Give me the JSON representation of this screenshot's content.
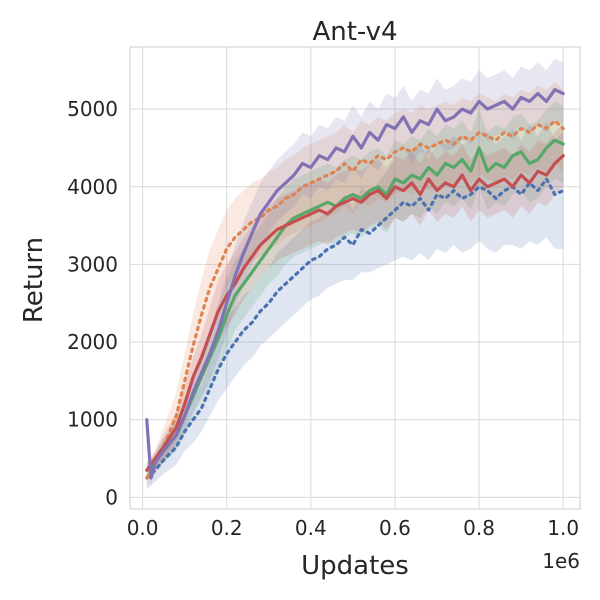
{
  "chart_data": {
    "type": "line",
    "title": "Ant-v4",
    "xlabel": "Updates",
    "ylabel": "Return",
    "x_offset_label": "1e6",
    "xlim": [
      -0.03,
      1.04
    ],
    "ylim": [
      -150,
      5800
    ],
    "x_ticks": [
      0.0,
      0.2,
      0.4,
      0.6,
      0.8,
      1.0
    ],
    "x_tick_labels": [
      "0.0",
      "0.2",
      "0.4",
      "0.6",
      "0.8",
      "1.0"
    ],
    "y_ticks": [
      0,
      1000,
      2000,
      3000,
      4000,
      5000
    ],
    "y_tick_labels": [
      "0",
      "1000",
      "2000",
      "3000",
      "4000",
      "5000"
    ],
    "grid": true,
    "series": [
      {
        "color": "#4c72b0",
        "style": "dotted",
        "x": [
          0.01,
          0.03,
          0.05,
          0.08,
          0.1,
          0.12,
          0.14,
          0.16,
          0.18,
          0.2,
          0.22,
          0.24,
          0.26,
          0.28,
          0.3,
          0.32,
          0.34,
          0.36,
          0.38,
          0.4,
          0.42,
          0.44,
          0.46,
          0.48,
          0.5,
          0.52,
          0.54,
          0.56,
          0.58,
          0.6,
          0.62,
          0.64,
          0.66,
          0.68,
          0.7,
          0.72,
          0.74,
          0.76,
          0.78,
          0.8,
          0.82,
          0.84,
          0.86,
          0.88,
          0.9,
          0.92,
          0.94,
          0.96,
          0.98,
          1.0
        ],
        "y": [
          250,
          350,
          480,
          650,
          850,
          1000,
          1150,
          1400,
          1650,
          1850,
          2000,
          2150,
          2250,
          2400,
          2500,
          2650,
          2750,
          2850,
          2950,
          3050,
          3100,
          3200,
          3250,
          3350,
          3250,
          3450,
          3400,
          3500,
          3600,
          3700,
          3800,
          3750,
          3850,
          3700,
          3900,
          3850,
          3950,
          3850,
          3900,
          4000,
          3950,
          3850,
          3950,
          4000,
          3900,
          4050,
          3950,
          4100,
          3900,
          3950
        ],
        "band_lo": [
          100,
          200,
          300,
          420,
          600,
          700,
          850,
          1050,
          1250,
          1400,
          1550,
          1700,
          1800,
          1950,
          2050,
          2150,
          2250,
          2350,
          2450,
          2550,
          2600,
          2700,
          2750,
          2800,
          2800,
          2900,
          2900,
          2950,
          3000,
          3050,
          3100,
          3050,
          3150,
          3050,
          3200,
          3150,
          3250,
          3150,
          3200,
          3300,
          3200,
          3150,
          3250,
          3250,
          3200,
          3300,
          3250,
          3350,
          3200,
          3200
        ],
        "band_hi": [
          400,
          500,
          650,
          880,
          1100,
          1300,
          1450,
          1750,
          2050,
          2300,
          2450,
          2600,
          2700,
          2850,
          2950,
          3150,
          3250,
          3350,
          3450,
          3550,
          3600,
          3700,
          3750,
          3900,
          3700,
          4000,
          3900,
          4050,
          4200,
          4350,
          4500,
          4450,
          4550,
          4350,
          4600,
          4550,
          4650,
          4550,
          4600,
          4700,
          4700,
          4550,
          4650,
          4750,
          4600,
          4800,
          4650,
          4850,
          4600,
          4700
        ]
      },
      {
        "color": "#dd8452",
        "style": "dotted",
        "x": [
          0.01,
          0.03,
          0.05,
          0.08,
          0.1,
          0.12,
          0.14,
          0.16,
          0.18,
          0.2,
          0.22,
          0.24,
          0.26,
          0.28,
          0.3,
          0.32,
          0.34,
          0.36,
          0.38,
          0.4,
          0.42,
          0.44,
          0.46,
          0.48,
          0.5,
          0.52,
          0.54,
          0.56,
          0.58,
          0.6,
          0.62,
          0.64,
          0.66,
          0.68,
          0.7,
          0.72,
          0.74,
          0.76,
          0.78,
          0.8,
          0.82,
          0.84,
          0.86,
          0.88,
          0.9,
          0.92,
          0.94,
          0.96,
          0.98,
          1.0
        ],
        "y": [
          250,
          450,
          650,
          1050,
          1500,
          1950,
          2350,
          2700,
          2950,
          3200,
          3350,
          3450,
          3550,
          3600,
          3700,
          3750,
          3850,
          3900,
          4000,
          4050,
          4100,
          4150,
          4200,
          4300,
          4200,
          4350,
          4300,
          4400,
          4350,
          4450,
          4500,
          4450,
          4550,
          4500,
          4550,
          4600,
          4550,
          4650,
          4600,
          4700,
          4650,
          4600,
          4700,
          4650,
          4750,
          4700,
          4800,
          4750,
          4850,
          4750
        ],
        "band_lo": [
          150,
          300,
          450,
          800,
          1150,
          1550,
          1900,
          2200,
          2450,
          2700,
          2850,
          2950,
          3050,
          3100,
          3200,
          3250,
          3350,
          3400,
          3450,
          3500,
          3550,
          3600,
          3650,
          3750,
          3650,
          3800,
          3750,
          3850,
          3800,
          3900,
          3950,
          3900,
          4000,
          3950,
          4000,
          4050,
          4000,
          4100,
          4050,
          4150,
          4100,
          4050,
          4150,
          4100,
          4200,
          4150,
          4250,
          4200,
          4300,
          4200
        ],
        "band_hi": [
          350,
          600,
          900,
          1350,
          1850,
          2350,
          2800,
          3200,
          3450,
          3700,
          3850,
          3950,
          4050,
          4100,
          4200,
          4250,
          4350,
          4400,
          4500,
          4550,
          4600,
          4650,
          4700,
          4800,
          4700,
          4850,
          4800,
          4900,
          4850,
          4950,
          5000,
          4950,
          5050,
          5000,
          5050,
          5100,
          5050,
          5150,
          5100,
          5200,
          5150,
          5100,
          5200,
          5150,
          5250,
          5200,
          5300,
          5250,
          5350,
          5250
        ]
      },
      {
        "color": "#55a868",
        "style": "solid",
        "x": [
          0.01,
          0.03,
          0.05,
          0.08,
          0.1,
          0.12,
          0.14,
          0.16,
          0.18,
          0.2,
          0.22,
          0.24,
          0.26,
          0.28,
          0.3,
          0.32,
          0.34,
          0.36,
          0.38,
          0.4,
          0.42,
          0.44,
          0.46,
          0.48,
          0.5,
          0.52,
          0.54,
          0.56,
          0.58,
          0.6,
          0.62,
          0.64,
          0.66,
          0.68,
          0.7,
          0.72,
          0.74,
          0.76,
          0.78,
          0.8,
          0.82,
          0.84,
          0.86,
          0.88,
          0.9,
          0.92,
          0.94,
          0.96,
          0.98,
          1.0
        ],
        "y": [
          350,
          450,
          600,
          800,
          1050,
          1300,
          1550,
          1800,
          2050,
          2350,
          2600,
          2750,
          2900,
          3050,
          3200,
          3350,
          3500,
          3600,
          3650,
          3700,
          3750,
          3800,
          3750,
          3850,
          3900,
          3850,
          3950,
          4000,
          3900,
          4100,
          4050,
          4150,
          4100,
          4250,
          4150,
          4300,
          4250,
          4350,
          4200,
          4500,
          4200,
          4300,
          4250,
          4400,
          4450,
          4300,
          4350,
          4500,
          4600,
          4550
        ],
        "band_lo": [
          250,
          350,
          450,
          600,
          800,
          1050,
          1250,
          1450,
          1650,
          1900,
          2150,
          2300,
          2450,
          2600,
          2750,
          2850,
          3000,
          3100,
          3150,
          3200,
          3250,
          3300,
          3250,
          3350,
          3400,
          3350,
          3450,
          3500,
          3400,
          3600,
          3550,
          3650,
          3600,
          3750,
          3650,
          3800,
          3750,
          3850,
          3700,
          4000,
          3700,
          3800,
          3750,
          3900,
          3950,
          3800,
          3850,
          4000,
          4100,
          4050
        ],
        "band_hi": [
          450,
          550,
          750,
          1000,
          1300,
          1550,
          1850,
          2150,
          2450,
          2800,
          3050,
          3200,
          3350,
          3500,
          3650,
          3850,
          4000,
          4100,
          4150,
          4200,
          4250,
          4300,
          4250,
          4350,
          4400,
          4350,
          4450,
          4500,
          4400,
          4600,
          4550,
          4650,
          4600,
          4750,
          4650,
          4800,
          4750,
          4850,
          4700,
          5000,
          4700,
          4800,
          4750,
          4900,
          4950,
          4800,
          4850,
          5000,
          5100,
          5050
        ]
      },
      {
        "color": "#c44e52",
        "style": "solid",
        "x": [
          0.01,
          0.03,
          0.05,
          0.08,
          0.1,
          0.12,
          0.14,
          0.16,
          0.18,
          0.2,
          0.22,
          0.24,
          0.26,
          0.28,
          0.3,
          0.32,
          0.34,
          0.36,
          0.38,
          0.4,
          0.42,
          0.44,
          0.46,
          0.48,
          0.5,
          0.52,
          0.54,
          0.56,
          0.58,
          0.6,
          0.62,
          0.64,
          0.66,
          0.68,
          0.7,
          0.72,
          0.74,
          0.76,
          0.78,
          0.8,
          0.82,
          0.84,
          0.86,
          0.88,
          0.9,
          0.92,
          0.94,
          0.96,
          0.98,
          1.0
        ],
        "y": [
          350,
          500,
          650,
          900,
          1200,
          1550,
          1800,
          2100,
          2400,
          2600,
          2750,
          2950,
          3100,
          3250,
          3350,
          3450,
          3500,
          3550,
          3600,
          3650,
          3700,
          3650,
          3750,
          3800,
          3850,
          3800,
          3900,
          3950,
          3850,
          4000,
          3950,
          4050,
          3900,
          4100,
          3950,
          4050,
          4000,
          4150,
          3950,
          4100,
          4000,
          4050,
          4100,
          4000,
          4150,
          4050,
          4200,
          4150,
          4300,
          4400
        ],
        "band_lo": [
          250,
          400,
          500,
          700,
          950,
          1300,
          1500,
          1750,
          2000,
          2200,
          2350,
          2550,
          2700,
          2850,
          2950,
          3050,
          3100,
          3150,
          3200,
          3250,
          3300,
          3250,
          3350,
          3400,
          3450,
          3400,
          3500,
          3550,
          3450,
          3600,
          3550,
          3650,
          3500,
          3700,
          3550,
          3650,
          3600,
          3750,
          3550,
          3700,
          3600,
          3650,
          3700,
          3600,
          3750,
          3650,
          3800,
          3750,
          3900,
          4000
        ],
        "band_hi": [
          450,
          600,
          800,
          1100,
          1450,
          1800,
          2100,
          2450,
          2800,
          3000,
          3150,
          3350,
          3500,
          3650,
          3750,
          3850,
          3900,
          3950,
          4000,
          4050,
          4100,
          4050,
          4150,
          4200,
          4250,
          4200,
          4300,
          4350,
          4250,
          4400,
          4350,
          4450,
          4300,
          4500,
          4350,
          4450,
          4400,
          4550,
          4350,
          4500,
          4400,
          4450,
          4500,
          4400,
          4550,
          4450,
          4600,
          4550,
          4700,
          4800
        ]
      },
      {
        "color": "#8172b3",
        "style": "solid",
        "x": [
          0.01,
          0.02,
          0.03,
          0.05,
          0.08,
          0.1,
          0.12,
          0.14,
          0.16,
          0.18,
          0.2,
          0.22,
          0.24,
          0.26,
          0.28,
          0.3,
          0.32,
          0.34,
          0.36,
          0.38,
          0.4,
          0.42,
          0.44,
          0.46,
          0.48,
          0.5,
          0.52,
          0.54,
          0.56,
          0.58,
          0.6,
          0.62,
          0.64,
          0.66,
          0.68,
          0.7,
          0.72,
          0.74,
          0.76,
          0.78,
          0.8,
          0.82,
          0.84,
          0.86,
          0.88,
          0.9,
          0.92,
          0.94,
          0.96,
          0.98,
          1.0
        ],
        "y": [
          1000,
          250,
          450,
          600,
          800,
          1050,
          1350,
          1600,
          1850,
          2150,
          2500,
          2850,
          3150,
          3400,
          3650,
          3800,
          3950,
          4050,
          4150,
          4300,
          4250,
          4400,
          4350,
          4500,
          4450,
          4650,
          4500,
          4700,
          4600,
          4800,
          4750,
          4900,
          4700,
          4850,
          4800,
          5000,
          4850,
          4900,
          5000,
          4950,
          5100,
          5000,
          5050,
          5100,
          5000,
          5150,
          5100,
          5200,
          5100,
          5250,
          5200
        ],
        "band_lo": [
          900,
          150,
          350,
          450,
          650,
          850,
          1100,
          1300,
          1500,
          1800,
          2100,
          2450,
          2750,
          3000,
          3250,
          3400,
          3550,
          3650,
          3750,
          3900,
          3850,
          4000,
          3950,
          4100,
          4050,
          4250,
          4100,
          4300,
          4200,
          4400,
          4350,
          4500,
          4300,
          4450,
          4400,
          4600,
          4450,
          4500,
          4600,
          4550,
          4700,
          4600,
          4650,
          4700,
          4600,
          4750,
          4700,
          4800,
          4700,
          4850,
          4800
        ],
        "band_hi": [
          1100,
          350,
          550,
          750,
          950,
          1250,
          1600,
          1900,
          2200,
          2500,
          2900,
          3250,
          3550,
          3800,
          4050,
          4200,
          4350,
          4450,
          4550,
          4700,
          4650,
          4800,
          4750,
          4900,
          4850,
          5050,
          4900,
          5100,
          5000,
          5200,
          5150,
          5300,
          5100,
          5250,
          5200,
          5400,
          5250,
          5300,
          5400,
          5350,
          5500,
          5400,
          5450,
          5500,
          5400,
          5550,
          5500,
          5600,
          5500,
          5650,
          5600
        ]
      }
    ]
  }
}
